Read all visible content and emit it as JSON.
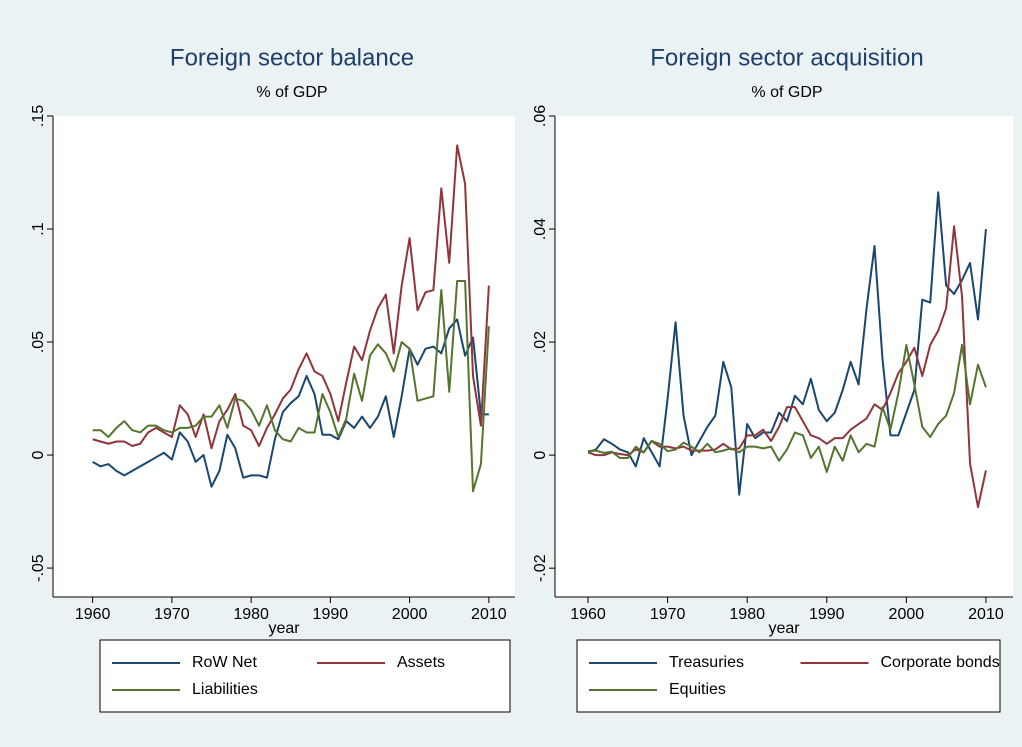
{
  "chart_data": [
    {
      "type": "line",
      "title": "Foreign sector balance",
      "subtitle": "% of GDP",
      "xlabel": "year",
      "x": [
        1960,
        1961,
        1962,
        1963,
        1964,
        1965,
        1966,
        1967,
        1968,
        1969,
        1970,
        1971,
        1972,
        1973,
        1974,
        1975,
        1976,
        1977,
        1978,
        1979,
        1980,
        1981,
        1982,
        1983,
        1984,
        1985,
        1986,
        1987,
        1988,
        1989,
        1990,
        1991,
        1992,
        1993,
        1994,
        1995,
        1996,
        1997,
        1998,
        1999,
        2000,
        2001,
        2002,
        2003,
        2004,
        2005,
        2006,
        2007,
        2008,
        2009,
        2010
      ],
      "series": [
        {
          "name": "RoW Net",
          "color": "#1a476f",
          "values": [
            -0.003,
            -0.005,
            -0.004,
            -0.007,
            -0.009,
            -0.007,
            -0.005,
            -0.003,
            -0.001,
            0.001,
            -0.002,
            0.01,
            0.006,
            -0.003,
            0,
            -0.014,
            -0.007,
            0.009,
            0.003,
            -0.01,
            -0.009,
            -0.009,
            -0.01,
            0.007,
            0.019,
            0.023,
            0.026,
            0.035,
            0.027,
            0.009,
            0.009,
            0.007,
            0.015,
            0.012,
            0.017,
            0.012,
            0.017,
            0.026,
            0.008,
            0.026,
            0.047,
            0.04,
            0.047,
            0.048,
            0.045,
            0.056,
            0.06,
            0.044,
            0.052,
            0.018,
            0.018
          ]
        },
        {
          "name": "Assets",
          "color": "#90353b",
          "values": [
            0.007,
            0.006,
            0.005,
            0.006,
            0.006,
            0.004,
            0.005,
            0.01,
            0.012,
            0.01,
            0.008,
            0.022,
            0.018,
            0.008,
            0.018,
            0.003,
            0.015,
            0.02,
            0.027,
            0.013,
            0.011,
            0.004,
            0.012,
            0.018,
            0.025,
            0.029,
            0.038,
            0.045,
            0.037,
            0.035,
            0.027,
            0.015,
            0.032,
            0.048,
            0.042,
            0.055,
            0.065,
            0.071,
            0.045,
            0.075,
            0.096,
            0.064,
            0.072,
            0.073,
            0.118,
            0.085,
            0.137,
            0.12,
            0.035,
            0.013,
            0.075
          ]
        },
        {
          "name": "Liabilities",
          "color": "#55752f",
          "values": [
            0.011,
            0.011,
            0.008,
            0.012,
            0.015,
            0.011,
            0.01,
            0.013,
            0.013,
            0.011,
            0.01,
            0.012,
            0.012,
            0.013,
            0.017,
            0.017,
            0.022,
            0.012,
            0.025,
            0.024,
            0.02,
            0.013,
            0.022,
            0.011,
            0.007,
            0.006,
            0.012,
            0.01,
            0.01,
            0.027,
            0.019,
            0.008,
            0.016,
            0.036,
            0.024,
            0.044,
            0.049,
            0.045,
            0.037,
            0.05,
            0.047,
            0.024,
            0.025,
            0.026,
            0.073,
            0.028,
            0.077,
            0.077,
            -0.016,
            -0.004,
            0.057
          ]
        }
      ],
      "xlim": [
        1955,
        2013.3
      ],
      "ylim": [
        -0.0628,
        0.15
      ],
      "xticks": [
        1960,
        1970,
        1980,
        1990,
        2000,
        2010
      ],
      "yticks": [
        {
          "value": -0.05,
          "label": "-.05"
        },
        0,
        {
          "value": 0.05,
          "label": ".05"
        },
        {
          "value": 0.1,
          "label": ".1"
        },
        {
          "value": 0.15,
          "label": ".15"
        }
      ],
      "legend": "bottom"
    },
    {
      "type": "line",
      "title": "Foreign sector acquisition",
      "subtitle": "% of GDP",
      "xlabel": "year",
      "x": [
        1960,
        1961,
        1962,
        1963,
        1964,
        1965,
        1966,
        1967,
        1968,
        1969,
        1970,
        1971,
        1972,
        1973,
        1974,
        1975,
        1976,
        1977,
        1978,
        1979,
        1980,
        1981,
        1982,
        1983,
        1984,
        1985,
        1986,
        1987,
        1988,
        1989,
        1990,
        1991,
        1992,
        1993,
        1994,
        1995,
        1996,
        1997,
        1998,
        1999,
        2000,
        2001,
        2002,
        2003,
        2004,
        2005,
        2006,
        2007,
        2008,
        2009,
        2010
      ],
      "series": [
        {
          "name": "Treasuries",
          "color": "#1a476f",
          "values": [
            0.0005,
            0.001,
            0.0028,
            0.002,
            0.001,
            0.0005,
            -0.002,
            0.003,
            0.0005,
            -0.002,
            0.01,
            0.0235,
            0.007,
            0,
            0.0025,
            0.005,
            0.007,
            0.0165,
            0.012,
            -0.007,
            0.0055,
            0.003,
            0.004,
            0.004,
            0.0075,
            0.006,
            0.0105,
            0.009,
            0.0135,
            0.008,
            0.006,
            0.0075,
            0.0115,
            0.0165,
            0.0125,
            0.026,
            0.037,
            0.017,
            0.0035,
            0.0035,
            0.0075,
            0.0115,
            0.0275,
            0.027,
            0.0465,
            0.03,
            0.0285,
            0.031,
            0.034,
            0.024,
            0.04
          ]
        },
        {
          "name": "Corporate bonds",
          "color": "#90353b",
          "values": [
            0.0005,
            0,
            0,
            0.0005,
            0.0002,
            0,
            0.001,
            0.0005,
            0.0025,
            0.0015,
            0.0015,
            0.0012,
            0.0015,
            0.0008,
            0.0008,
            0.0008,
            0.001,
            0.002,
            0.001,
            0.0012,
            0.0035,
            0.0035,
            0.0045,
            0.0025,
            0.005,
            0.0085,
            0.0085,
            0.006,
            0.0035,
            0.003,
            0.002,
            0.003,
            0.003,
            0.0045,
            0.0055,
            0.0065,
            0.009,
            0.008,
            0.011,
            0.0145,
            0.0165,
            0.019,
            0.014,
            0.0195,
            0.022,
            0.026,
            0.0405,
            0.028,
            -0.0015,
            -0.0092,
            -0.0027
          ]
        },
        {
          "name": "Equities",
          "color": "#55752f",
          "values": [
            0.0007,
            0.0008,
            0.0004,
            0.0006,
            -0.0005,
            -0.0005,
            0.0015,
            0.0005,
            0.0025,
            0.002,
            0.0007,
            0.001,
            0.0022,
            0.0015,
            0.0005,
            0.002,
            0.0005,
            0.0008,
            0.0012,
            0.0005,
            0.0015,
            0.0015,
            0.0012,
            0.0015,
            -0.001,
            0.001,
            0.004,
            0.0035,
            -0.0005,
            0.0015,
            -0.003,
            0.0015,
            -0.001,
            0.0035,
            0.0005,
            0.002,
            0.0015,
            0.0085,
            0.0045,
            0.011,
            0.0195,
            0.0125,
            0.005,
            0.0032,
            0.0055,
            0.007,
            0.011,
            0.0195,
            0.009,
            0.016,
            0.012
          ]
        }
      ],
      "xlim": [
        1955.85,
        2013.4
      ],
      "ylim": [
        -0.0251,
        0.06
      ],
      "xticks": [
        1960,
        1970,
        1980,
        1990,
        2000,
        2010
      ],
      "yticks": [
        {
          "value": -0.02,
          "label": "-.02"
        },
        0,
        {
          "value": 0.02,
          "label": ".02"
        },
        {
          "value": 0.04,
          "label": ".04"
        },
        {
          "value": 0.06,
          "label": ".06"
        }
      ],
      "legend": "bottom"
    }
  ]
}
